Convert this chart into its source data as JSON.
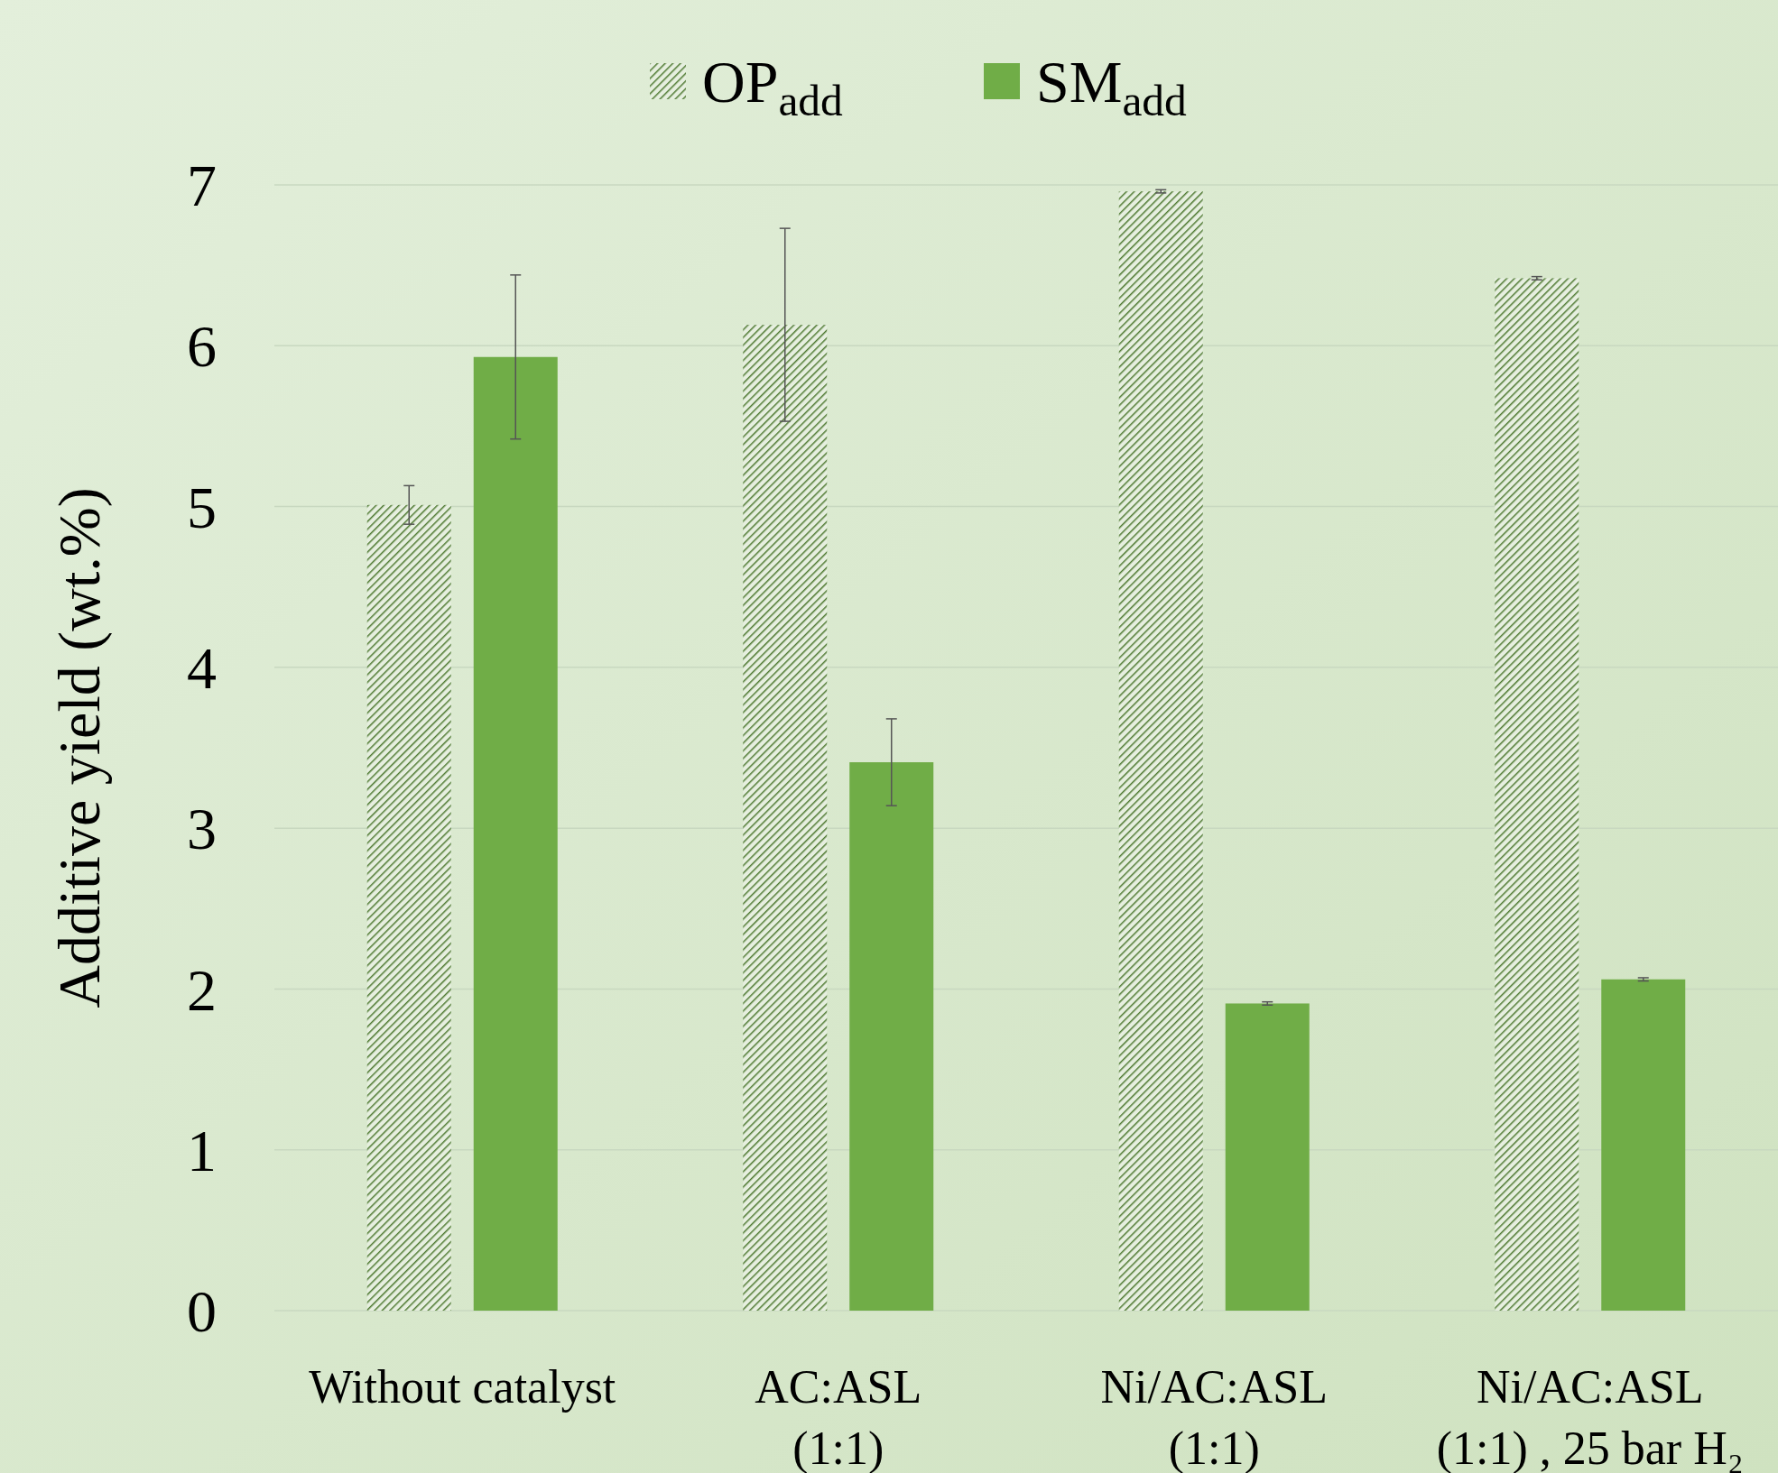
{
  "chart_data": {
    "type": "bar",
    "ylabel": "Additive yield (wt.%)",
    "categories": [
      "Without catalyst",
      "AC:ASL\n(1:1)",
      "Ni/AC:ASL\n(1:1)",
      "Ni/AC:ASL\n(1:1) , 25 bar H₂"
    ],
    "series": [
      {
        "name": "OP$_{add}$",
        "color": "#4f7a32",
        "values": [
          5.01,
          6.13,
          6.96,
          6.42
        ],
        "errors": [
          0.12,
          0.6,
          0.01,
          0.01
        ]
      },
      {
        "name": "SM$_{add}$",
        "color": "#70ad47",
        "values": [
          5.93,
          3.41,
          1.91,
          2.06
        ],
        "errors": [
          0.51,
          0.27,
          0.01,
          0.01
        ]
      }
    ],
    "ylim": [
      0,
      7
    ],
    "yticks": [
      0,
      1,
      2,
      3,
      4,
      5,
      6,
      7
    ],
    "grid": "y",
    "legend": "top"
  }
}
